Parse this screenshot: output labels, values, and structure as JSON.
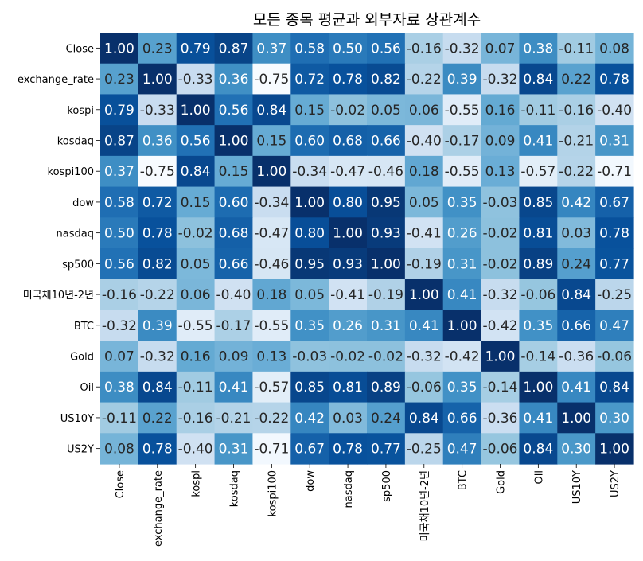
{
  "chart_data": {
    "type": "heatmap",
    "title": "모든 종목 평균과 외부자료 상관계수",
    "xlabel": "",
    "ylabel": "",
    "colorscale": "Blues",
    "value_range": [
      -0.75,
      1.0
    ],
    "legend": "none",
    "grid": false,
    "rows": [
      "Close",
      "exchange_rate",
      "kospi",
      "kosdaq",
      "kospi100",
      "dow",
      "nasdaq",
      "sp500",
      "미국채10년-2년",
      "BTC",
      "Gold",
      "Oil",
      "US10Y",
      "US2Y"
    ],
    "columns": [
      "Close",
      "exchange_rate",
      "kospi",
      "kosdaq",
      "kospi100",
      "dow",
      "nasdaq",
      "sp500",
      "미국채10년-2년",
      "BTC",
      "Gold",
      "Oil",
      "US10Y",
      "US2Y"
    ],
    "values": [
      [
        1.0,
        0.23,
        0.79,
        0.87,
        0.37,
        0.58,
        0.5,
        0.56,
        -0.16,
        -0.32,
        0.07,
        0.38,
        -0.11,
        0.08
      ],
      [
        0.23,
        1.0,
        -0.33,
        0.36,
        -0.75,
        0.72,
        0.78,
        0.82,
        -0.22,
        0.39,
        -0.32,
        0.84,
        0.22,
        0.78
      ],
      [
        0.79,
        -0.33,
        1.0,
        0.56,
        0.84,
        0.15,
        -0.02,
        0.05,
        0.06,
        -0.55,
        0.16,
        -0.11,
        -0.16,
        -0.4
      ],
      [
        0.87,
        0.36,
        0.56,
        1.0,
        0.15,
        0.6,
        0.68,
        0.66,
        -0.4,
        -0.17,
        0.09,
        0.41,
        -0.21,
        0.31
      ],
      [
        0.37,
        -0.75,
        0.84,
        0.15,
        1.0,
        -0.34,
        -0.47,
        -0.46,
        0.18,
        -0.55,
        0.13,
        -0.57,
        -0.22,
        -0.71
      ],
      [
        0.58,
        0.72,
        0.15,
        0.6,
        -0.34,
        1.0,
        0.8,
        0.95,
        0.05,
        0.35,
        -0.03,
        0.85,
        0.42,
        0.67
      ],
      [
        0.5,
        0.78,
        -0.02,
        0.68,
        -0.47,
        0.8,
        1.0,
        0.93,
        -0.41,
        0.26,
        -0.02,
        0.81,
        0.03,
        0.78
      ],
      [
        0.56,
        0.82,
        0.05,
        0.66,
        -0.46,
        0.95,
        0.93,
        1.0,
        -0.19,
        0.31,
        -0.02,
        0.89,
        0.24,
        0.77
      ],
      [
        -0.16,
        -0.22,
        0.06,
        -0.4,
        0.18,
        0.05,
        -0.41,
        -0.19,
        1.0,
        0.41,
        -0.32,
        -0.06,
        0.84,
        -0.25
      ],
      [
        -0.32,
        0.39,
        -0.55,
        -0.17,
        -0.55,
        0.35,
        0.26,
        0.31,
        0.41,
        1.0,
        -0.42,
        0.35,
        0.66,
        0.47
      ],
      [
        0.07,
        -0.32,
        0.16,
        0.09,
        0.13,
        -0.03,
        -0.02,
        -0.02,
        -0.32,
        -0.42,
        1.0,
        -0.14,
        -0.36,
        -0.06
      ],
      [
        0.38,
        0.84,
        -0.11,
        0.41,
        -0.57,
        0.85,
        0.81,
        0.89,
        -0.06,
        0.35,
        -0.14,
        1.0,
        0.41,
        0.84
      ],
      [
        -0.11,
        0.22,
        -0.16,
        -0.21,
        -0.22,
        0.42,
        0.03,
        0.24,
        0.84,
        0.66,
        -0.36,
        0.41,
        1.0,
        0.3
      ],
      [
        0.08,
        0.78,
        -0.4,
        0.31,
        -0.71,
        0.67,
        0.78,
        0.77,
        -0.25,
        0.47,
        -0.06,
        0.84,
        0.3,
        1.0
      ]
    ]
  }
}
